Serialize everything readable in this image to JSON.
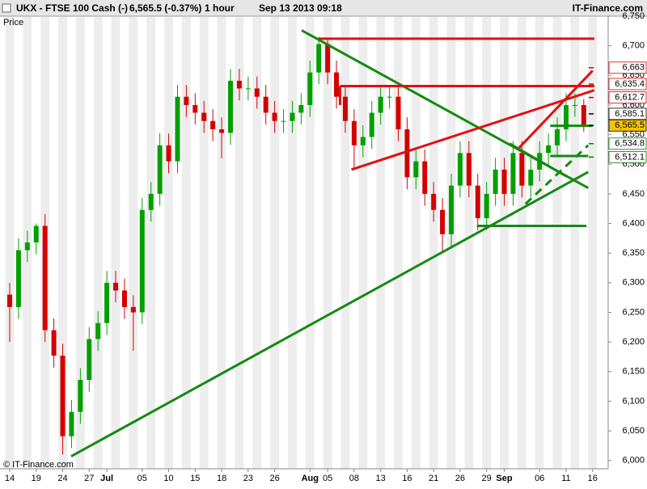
{
  "header": {
    "title": "UKX - FTSE 100 Cash (-)",
    "quote": "6,565.5 (-0.37%)",
    "interval": "1 hour",
    "timestamp": "Sep 13 2013 09:18",
    "brand": "IT-Finance.com"
  },
  "chart_data": {
    "type": "candlestick",
    "y_label": "Price",
    "watermark": "© IT-Finance.com",
    "up_color": "#00a000",
    "down_color": "#d40000",
    "categories": [
      "14",
      null,
      null,
      "19",
      null,
      null,
      "24",
      null,
      null,
      "27",
      null,
      "Jul",
      null,
      null,
      null,
      "05",
      null,
      null,
      "10",
      null,
      null,
      "15",
      null,
      null,
      "18",
      null,
      null,
      "23",
      null,
      null,
      "26",
      null,
      null,
      null,
      "Aug",
      null,
      "05",
      null,
      null,
      "08",
      null,
      null,
      "13",
      null,
      null,
      "16",
      null,
      null,
      "21",
      null,
      null,
      "26",
      null,
      null,
      "29",
      null,
      "Sep",
      null,
      null,
      null,
      "06",
      null,
      null,
      "11",
      null,
      null,
      "16"
    ],
    "open": [
      6280,
      6259,
      6355,
      6368,
      6396,
      6220,
      6177,
      6041,
      6082,
      6136,
      6205,
      6232,
      6300,
      6287,
      6259,
      6250,
      6423,
      6450,
      6532,
      6505,
      6614,
      6600,
      6587,
      6573,
      6559,
      6553,
      6641,
      6628,
      6628,
      6614,
      6587,
      6573,
      6573,
      6587,
      6600,
      6655,
      6703,
      6655,
      6614,
      6573,
      6532,
      6546,
      6587,
      6614,
      6614,
      6559,
      6478,
      6505,
      6450,
      6423,
      6382,
      6464,
      6519,
      6464,
      6409,
      6450,
      6491,
      6450,
      6519,
      6464,
      6491,
      6519,
      6532,
      6559,
      6600,
      6600,
      null
    ],
    "high": [
      6300,
      6375,
      6388,
      6400,
      6416,
      6240,
      6197,
      6102,
      6156,
      6225,
      6252,
      6320,
      6320,
      6307,
      6279,
      6443,
      6470,
      6552,
      6552,
      6634,
      6634,
      6620,
      6607,
      6593,
      6579,
      6661,
      6661,
      6648,
      6648,
      6634,
      6607,
      6593,
      6607,
      6620,
      6675,
      6715,
      6712,
      6675,
      6634,
      6593,
      6566,
      6607,
      6634,
      6634,
      6634,
      6579,
      6525,
      6525,
      6470,
      6443,
      6484,
      6539,
      6539,
      6484,
      6470,
      6511,
      6511,
      6539,
      6539,
      6511,
      6539,
      6552,
      6579,
      6620,
      6620,
      6610,
      null
    ],
    "low": [
      6200,
      6239,
      6335,
      6348,
      6200,
      6157,
      6010,
      6021,
      6062,
      6116,
      6185,
      6212,
      6267,
      6239,
      6185,
      6230,
      6403,
      6430,
      6485,
      6485,
      6580,
      6567,
      6553,
      6539,
      6510,
      6533,
      6608,
      6608,
      6594,
      6567,
      6553,
      6553,
      6553,
      6567,
      6580,
      6635,
      6635,
      6594,
      6553,
      6490,
      6512,
      6526,
      6567,
      6594,
      6539,
      6458,
      6458,
      6430,
      6403,
      6350,
      6362,
      6444,
      6444,
      6389,
      6389,
      6430,
      6430,
      6430,
      6444,
      6444,
      6471,
      6499,
      6512,
      6539,
      6580,
      6555,
      null
    ],
    "close": [
      6259,
      6355,
      6368,
      6396,
      6220,
      6177,
      6041,
      6082,
      6136,
      6205,
      6232,
      6300,
      6287,
      6259,
      6250,
      6423,
      6450,
      6532,
      6505,
      6614,
      6600,
      6587,
      6573,
      6559,
      6553,
      6641,
      6628,
      6628,
      6614,
      6587,
      6573,
      6573,
      6587,
      6600,
      6655,
      6703,
      6655,
      6614,
      6573,
      6532,
      6546,
      6587,
      6614,
      6614,
      6559,
      6478,
      6505,
      6450,
      6423,
      6382,
      6464,
      6519,
      6464,
      6409,
      6450,
      6491,
      6450,
      6519,
      6464,
      6491,
      6519,
      6532,
      6559,
      6600,
      6600,
      6565.5,
      null
    ],
    "ylim": [
      5986,
      6750
    ],
    "yticks": [
      {
        "value": 6000,
        "label": "6,000"
      },
      {
        "value": 6050,
        "label": "6,050"
      },
      {
        "value": 6100,
        "label": "6,100"
      },
      {
        "value": 6150,
        "label": "6,150"
      },
      {
        "value": 6200,
        "label": "6,200"
      },
      {
        "value": 6250,
        "label": "6,250"
      },
      {
        "value": 6300,
        "label": "6,300"
      },
      {
        "value": 6350,
        "label": "6,350"
      },
      {
        "value": 6400,
        "label": "6,400"
      },
      {
        "value": 6450,
        "label": "6,450"
      },
      {
        "value": 6500,
        "label": "6,500"
      },
      {
        "value": 6550,
        "label": "6,550"
      },
      {
        "value": 6600,
        "label": "6,600"
      },
      {
        "value": 6650,
        "label": "6,650"
      },
      {
        "value": 6700,
        "label": "6,700"
      },
      {
        "value": 6750,
        "label": "6,750"
      }
    ],
    "levels": [
      {
        "value": 6663,
        "label": "6,663",
        "color": "#d40000",
        "background": "#ffffff"
      },
      {
        "value": 6635.4,
        "label": "6,635.4",
        "color": "#d40000",
        "background": "#ffffff"
      },
      {
        "value": 6612.7,
        "label": "6,612.7",
        "color": "#d40000",
        "background": "#ffffff"
      },
      {
        "value": 6585.1,
        "label": "6,585.1",
        "color": "#000000",
        "background": "#ffffff"
      },
      {
        "value": 6565.5,
        "label": "6,565.5",
        "color": "#000000",
        "background": "#f5c400"
      },
      {
        "value": 6534.8,
        "label": "6,534.8",
        "color": "#007a00",
        "background": "#ffffff"
      },
      {
        "value": 6512.1,
        "label": "6,512.1",
        "color": "#007a00",
        "background": "#ffffff"
      }
    ],
    "trend_lines": [
      {
        "color": "#138a13",
        "x": [
          6.96,
          65.5
        ],
        "y": [
          6007,
          6487
        ]
      },
      {
        "color": "#138a13",
        "x": [
          33.06,
          65.5
        ],
        "y": [
          6726,
          6460
        ]
      },
      {
        "color": "#e01010",
        "x": [
          35,
          66.2
        ],
        "y": [
          6712,
          6712
        ]
      },
      {
        "color": "#e01010",
        "x": [
          37.4,
          66.2
        ],
        "y": [
          6632,
          6632
        ]
      },
      {
        "color": "#e01010",
        "x": [
          37.4,
          37.4
        ],
        "y": [
          6632,
          6600
        ]
      },
      {
        "color": "#e01010",
        "x": [
          38.7,
          66.2
        ],
        "y": [
          6491,
          6625
        ]
      },
      {
        "color": "#e01010",
        "x": [
          57.5,
          66
        ],
        "y": [
          6525,
          6658
        ]
      },
      {
        "color": "#138a13",
        "x": [
          52.9,
          65.3
        ],
        "y": [
          6396,
          6396
        ]
      },
      {
        "color": "#138a13",
        "x": [
          61.2,
          66
        ],
        "y": [
          6565,
          6565
        ]
      },
      {
        "color": "#138a13",
        "x": [
          61.2,
          65.5
        ],
        "y": [
          6514,
          6514
        ]
      },
      {
        "color": "#138a13",
        "x": [
          56.6,
          63
        ],
        "y": [
          6535,
          6480
        ]
      },
      {
        "color": "#138a13",
        "x": [
          58.4,
          65.5
        ],
        "y": [
          6433,
          6532
        ],
        "dashed": true
      }
    ]
  }
}
